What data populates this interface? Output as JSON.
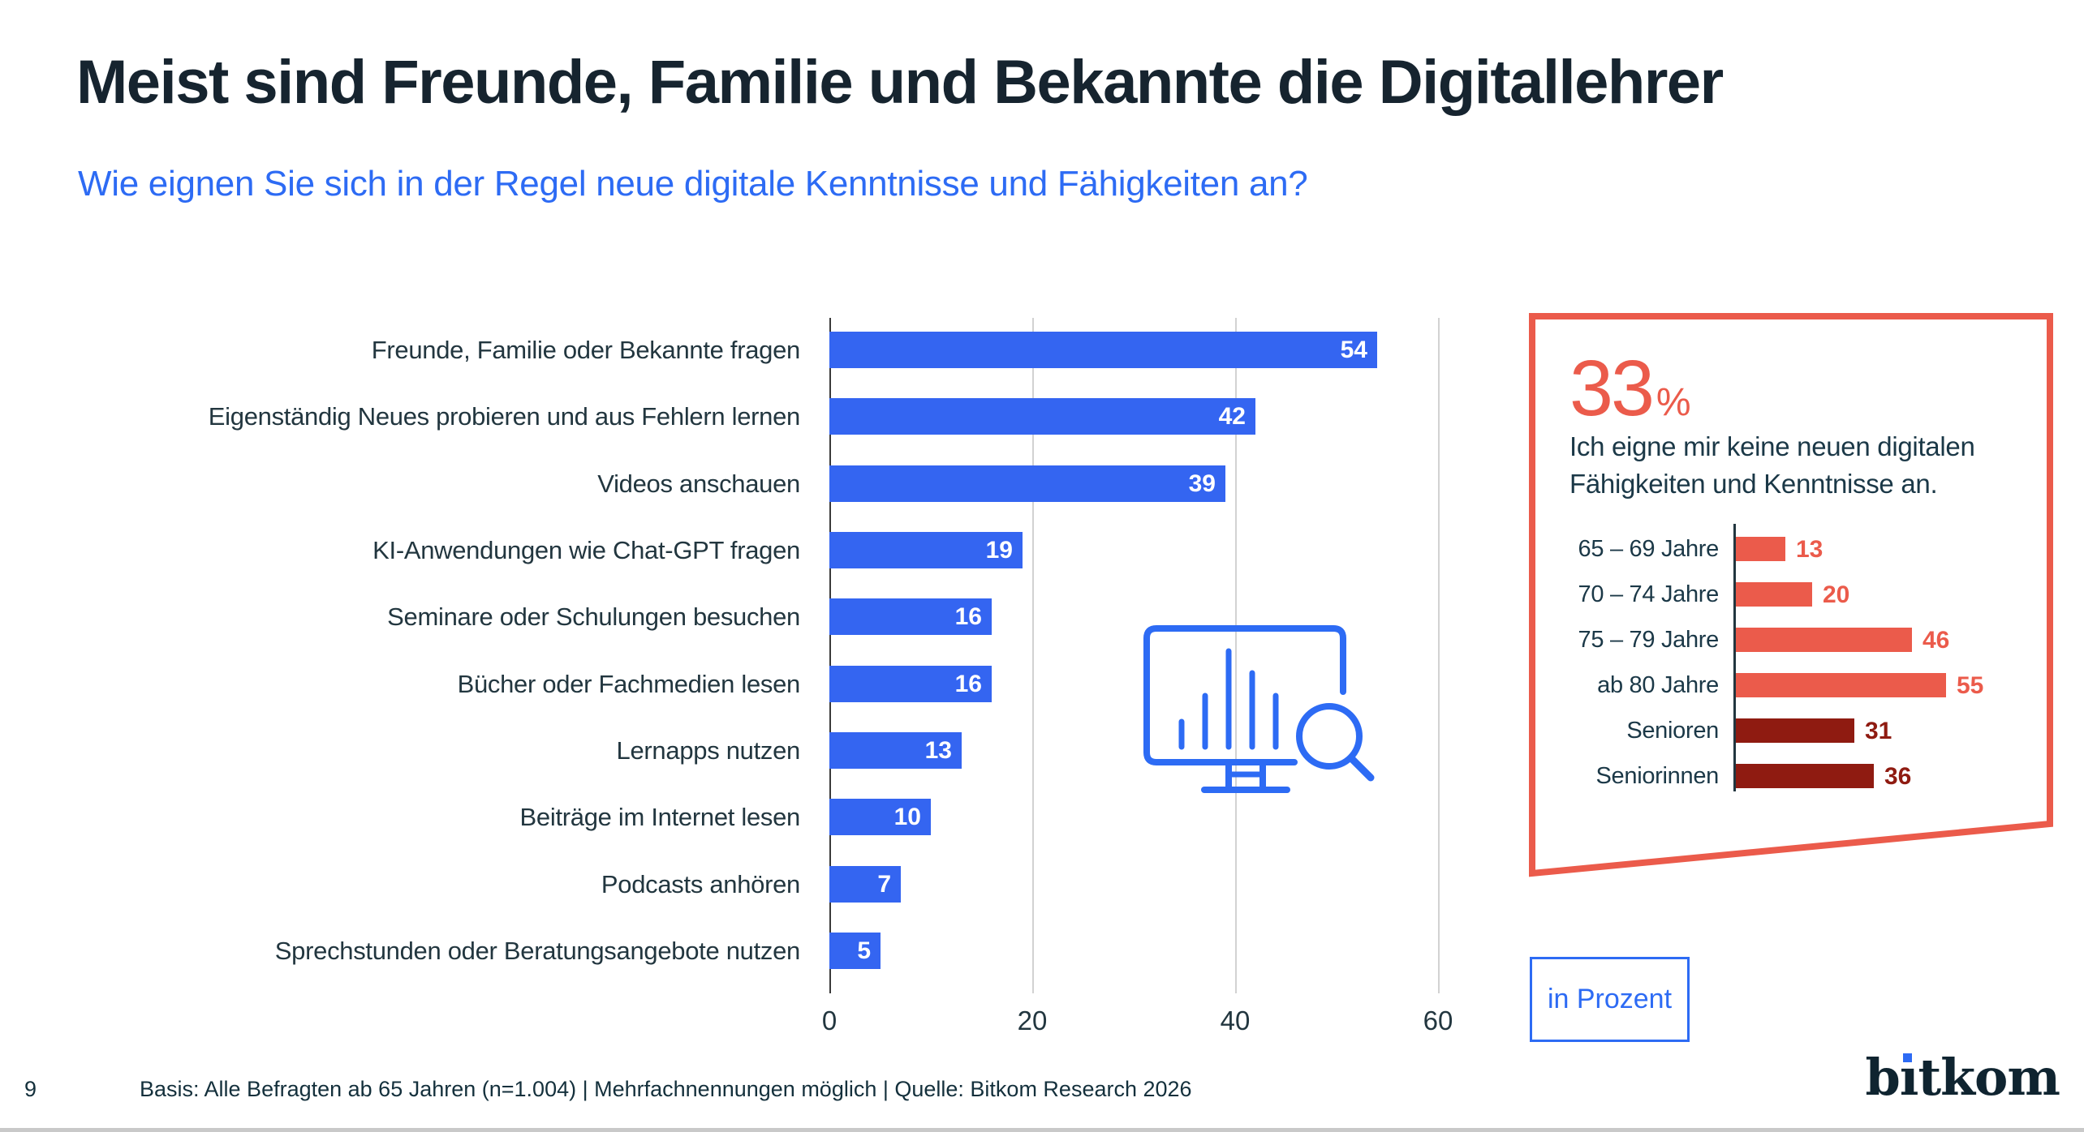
{
  "page": {
    "number": "9",
    "footer": "Basis: Alle Befragten ab 65 Jahren (n=1.004) | Mehrfachnennungen möglich | Quelle: Bitkom Research 2026"
  },
  "header": {
    "title": "Meist sind Freunde, Familie und Bekannte die Digitallehrer",
    "subtitle": "Wie eignen Sie sich in der Regel neue digitale Kenntnisse und Fähigkeiten an?"
  },
  "unit_badge": {
    "label": "in Prozent"
  },
  "logo": {
    "text": "bitkom"
  },
  "colors": {
    "accent_blue": "#2D6BF4",
    "bar_blue": "#3465F1",
    "salmon": "#EB5B4B",
    "dark_red": "#8F1B11",
    "title_dark": "#16242F",
    "text_dark": "#1B3847"
  },
  "chart_data": [
    {
      "type": "bar",
      "orientation": "horizontal",
      "unit": "Prozent",
      "categories": [
        "Freunde, Familie oder Bekannte fragen",
        "Eigenständig Neues probieren und aus Fehlern lernen",
        "Videos anschauen",
        "KI-Anwendungen wie Chat-GPT fragen",
        "Seminare oder Schulungen besuchen",
        "Bücher oder Fachmedien lesen",
        "Lernapps nutzen",
        "Beiträge im Internet lesen",
        "Podcasts anhören",
        "Sprechstunden oder Beratungsangebote nutzen"
      ],
      "values": [
        54,
        42,
        39,
        19,
        16,
        16,
        13,
        10,
        7,
        5
      ],
      "xlim": [
        0,
        65
      ],
      "xticks": [
        0,
        20,
        40,
        60
      ],
      "grid": true,
      "bar_color": "#3465F1",
      "value_label_color": "#ffffff"
    },
    {
      "type": "bar",
      "orientation": "horizontal",
      "unit": "Prozent",
      "callout_value": "33",
      "callout_unit": "%",
      "callout_text": "Ich eigne mir keine neuen digitalen Fähigkeiten und Kenntnisse an.",
      "callout_text_lines": [
        "Ich eigne mir keine neuen digitalen",
        "Fähigkeiten und Kenntnisse an."
      ],
      "categories": [
        "65 – 69 Jahre",
        "70 – 74 Jahre",
        "75 – 79 Jahre",
        "ab 80 Jahre",
        "Senioren",
        "Seniorinnen"
      ],
      "values": [
        13,
        20,
        46,
        55,
        31,
        36
      ],
      "bar_colors": [
        "#EB5B4B",
        "#EB5B4B",
        "#EB5B4B",
        "#EB5B4B",
        "#8F1B11",
        "#8F1B11"
      ],
      "xlim": [
        0,
        68
      ],
      "grid": false,
      "border_color": "#EB5B4B"
    }
  ]
}
